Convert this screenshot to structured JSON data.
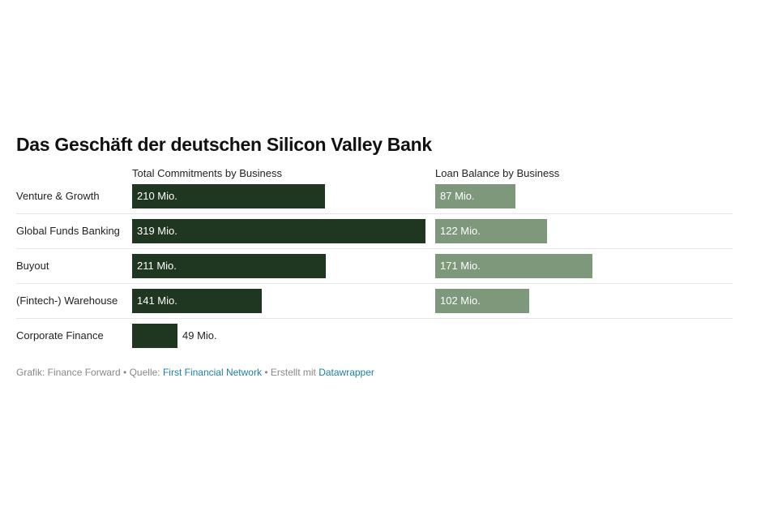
{
  "chart_data": {
    "type": "bar",
    "orientation": "horizontal",
    "title": "Das Geschäft der deutschen Silicon Valley Bank",
    "categories": [
      "Venture & Growth",
      "Global Funds Banking",
      "Buyout",
      "(Fintech-) Warehouse",
      "Corporate Finance"
    ],
    "series": [
      {
        "name": "Total Commitments by Business",
        "values": [
          210,
          319,
          211,
          141,
          49
        ],
        "labels": [
          "210 Mio.",
          "319 Mio.",
          "211 Mio.",
          "141 Mio.",
          "49 Mio."
        ],
        "color": "#1f3620"
      },
      {
        "name": "Loan Balance by Business",
        "values": [
          87,
          122,
          171,
          102,
          null
        ],
        "labels": [
          "87 Mio.",
          "122 Mio.",
          "171 Mio.",
          "102 Mio.",
          ""
        ],
        "color": "#7d987b"
      }
    ],
    "xlim": [
      0,
      319
    ],
    "grid": false,
    "legend": "none"
  },
  "footer": {
    "credit": "Grafik: Finance Forward",
    "separator": " • ",
    "source_label": "Quelle: ",
    "source": "First Financial Network",
    "made_with": "Erstellt mit ",
    "tool": "Datawrapper"
  }
}
